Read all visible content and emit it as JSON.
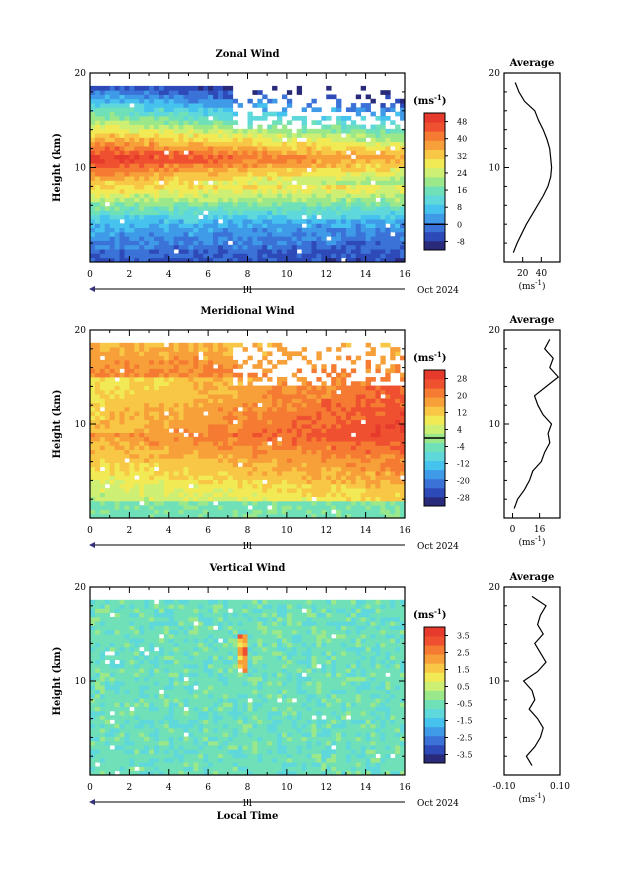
{
  "chart_data": [
    {
      "type": "heatmap",
      "title": "Zonal Wind",
      "ylabel": "Height (km)",
      "xlim": [
        0,
        16
      ],
      "ylim": [
        0,
        20
      ],
      "x_ticks": [
        "0",
        "2",
        "4",
        "6",
        "8",
        "10",
        "12",
        "14",
        "16"
      ],
      "y_ticks": [
        "10",
        "20"
      ],
      "date_marker": "11",
      "date_label": "Oct 2024",
      "colorbar": {
        "unit_base": "(ms",
        "unit_exp": "-1",
        "unit_close": ")",
        "ticks": [
          "48",
          "40",
          "32",
          "24",
          "16",
          "8",
          "0",
          "-8"
        ],
        "range": [
          -12,
          52
        ],
        "zero_line": 0
      },
      "profile": {
        "title": "Average",
        "xlim": [
          0,
          60
        ],
        "x_ticks": [
          "20",
          "40"
        ],
        "xlabel_base": "(ms",
        "xlabel_exp": "-1",
        "xlabel_close": ")",
        "y_ticks": [
          "10",
          "20"
        ],
        "heights": [
          1,
          2,
          3,
          4,
          5,
          6,
          7,
          8,
          9,
          10,
          11,
          12,
          13,
          14,
          15,
          16,
          17,
          18,
          19
        ],
        "values": [
          10,
          14,
          19,
          24,
          30,
          36,
          42,
          47,
          50,
          51,
          50,
          49,
          46,
          42,
          37,
          33,
          22,
          16,
          12
        ]
      }
    },
    {
      "type": "heatmap",
      "title": "Meridional Wind",
      "ylabel": "Height (km)",
      "xlim": [
        0,
        16
      ],
      "ylim": [
        0,
        20
      ],
      "x_ticks": [
        "0",
        "2",
        "4",
        "6",
        "8",
        "10",
        "12",
        "14",
        "16"
      ],
      "y_ticks": [
        "10",
        "20"
      ],
      "date_marker": "11",
      "date_label": "Oct 2024",
      "colorbar": {
        "unit_base": "(ms",
        "unit_exp": "-1",
        "unit_close": ")",
        "ticks": [
          "28",
          "20",
          "12",
          "4",
          "-4",
          "-12",
          "-20",
          "-28"
        ],
        "range": [
          -32,
          32
        ],
        "zero_line": 0
      },
      "profile": {
        "title": "Average",
        "xlim": [
          -5,
          28
        ],
        "x_ticks": [
          "0",
          "16"
        ],
        "xlabel_base": "(ms",
        "xlabel_exp": "-1",
        "xlabel_close": ")",
        "y_ticks": [
          "10",
          "20"
        ],
        "heights": [
          1,
          2,
          3,
          4,
          5,
          6,
          7,
          8,
          9,
          10,
          11,
          12,
          13,
          14,
          15,
          16,
          17,
          18,
          19
        ],
        "values": [
          1,
          3,
          7,
          10,
          12,
          17,
          19,
          22,
          21,
          23,
          18,
          15,
          13,
          20,
          27,
          22,
          24,
          19,
          22
        ]
      }
    },
    {
      "type": "heatmap",
      "title": "Vertical Wind",
      "ylabel": "Height (km)",
      "xlabel": "Local Time",
      "xlim": [
        0,
        16
      ],
      "ylim": [
        0,
        20
      ],
      "x_ticks": [
        "0",
        "2",
        "4",
        "6",
        "8",
        "10",
        "12",
        "14",
        "16"
      ],
      "y_ticks": [
        "10",
        "20"
      ],
      "date_marker": "11",
      "date_label": "Oct 2024",
      "colorbar": {
        "unit_base": "(ms",
        "unit_exp": "-1",
        "unit_close": ")",
        "ticks": [
          "3.5",
          "2.5",
          "1.5",
          "0.5",
          "-0.5",
          "-1.5",
          "-2.5",
          "-3.5"
        ],
        "range": [
          -4,
          4
        ]
      },
      "profile": {
        "title": "Average",
        "xlim": [
          -0.1,
          0.1
        ],
        "x_ticks": [
          "-0.10",
          "0.10"
        ],
        "xlabel_base": "(ms",
        "xlabel_exp": "-1",
        "xlabel_close": ")",
        "y_ticks": [
          "10",
          "20"
        ],
        "heights": [
          1,
          2,
          3,
          4,
          5,
          6,
          7,
          8,
          9,
          10,
          11,
          12,
          13,
          14,
          15,
          16,
          17,
          18,
          19
        ],
        "values": [
          0.0,
          -0.02,
          0.01,
          0.03,
          0.04,
          0.02,
          -0.01,
          0.01,
          0.0,
          -0.03,
          0.02,
          0.05,
          0.03,
          0.01,
          0.04,
          0.02,
          0.03,
          0.05,
          0.0
        ]
      }
    }
  ]
}
